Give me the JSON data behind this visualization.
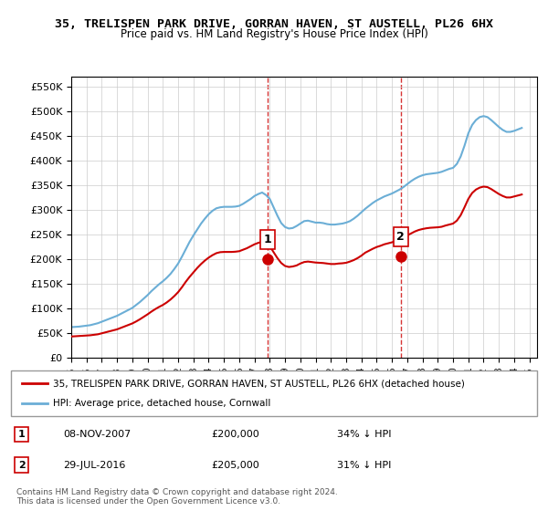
{
  "title": "35, TRELISPEN PARK DRIVE, GORRAN HAVEN, ST AUSTELL, PL26 6HX",
  "subtitle": "Price paid vs. HM Land Registry's House Price Index (HPI)",
  "ylabel_ticks": [
    "£0",
    "£50K",
    "£100K",
    "£150K",
    "£200K",
    "£250K",
    "£300K",
    "£350K",
    "£400K",
    "£450K",
    "£500K",
    "£550K"
  ],
  "ytick_values": [
    0,
    50000,
    100000,
    150000,
    200000,
    250000,
    300000,
    350000,
    400000,
    450000,
    500000,
    550000
  ],
  "ylim": [
    0,
    570000
  ],
  "xlim_start": 1995.0,
  "xlim_end": 2025.5,
  "xtick_years": [
    1995,
    1996,
    1997,
    1998,
    1999,
    2000,
    2001,
    2002,
    2003,
    2004,
    2005,
    2006,
    2007,
    2008,
    2009,
    2010,
    2011,
    2012,
    2013,
    2014,
    2015,
    2016,
    2017,
    2018,
    2019,
    2020,
    2021,
    2022,
    2023,
    2024,
    2025
  ],
  "sale1_x": 2007.87,
  "sale1_y": 200000,
  "sale1_label": "1",
  "sale2_x": 2016.58,
  "sale2_y": 205000,
  "sale2_label": "2",
  "sale1_date": "08-NOV-2007",
  "sale1_price": "£200,000",
  "sale1_info": "34% ↓ HPI",
  "sale2_date": "29-JUL-2016",
  "sale2_price": "£205,000",
  "sale2_info": "31% ↓ HPI",
  "hpi_color": "#6baed6",
  "price_color": "#cc0000",
  "dashed_color": "#cc0000",
  "bg_color": "#ffffff",
  "grid_color": "#cccccc",
  "legend_label_price": "35, TRELISPEN PARK DRIVE, GORRAN HAVEN, ST AUSTELL, PL26 6HX (detached house)",
  "legend_label_hpi": "HPI: Average price, detached house, Cornwall",
  "footer": "Contains HM Land Registry data © Crown copyright and database right 2024.\nThis data is licensed under the Open Government Licence v3.0.",
  "hpi_data_x": [
    1995.0,
    1995.25,
    1995.5,
    1995.75,
    1996.0,
    1996.25,
    1996.5,
    1996.75,
    1997.0,
    1997.25,
    1997.5,
    1997.75,
    1998.0,
    1998.25,
    1998.5,
    1998.75,
    1999.0,
    1999.25,
    1999.5,
    1999.75,
    2000.0,
    2000.25,
    2000.5,
    2000.75,
    2001.0,
    2001.25,
    2001.5,
    2001.75,
    2002.0,
    2002.25,
    2002.5,
    2002.75,
    2003.0,
    2003.25,
    2003.5,
    2003.75,
    2004.0,
    2004.25,
    2004.5,
    2004.75,
    2005.0,
    2005.25,
    2005.5,
    2005.75,
    2006.0,
    2006.25,
    2006.5,
    2006.75,
    2007.0,
    2007.25,
    2007.5,
    2007.75,
    2008.0,
    2008.25,
    2008.5,
    2008.75,
    2009.0,
    2009.25,
    2009.5,
    2009.75,
    2010.0,
    2010.25,
    2010.5,
    2010.75,
    2011.0,
    2011.25,
    2011.5,
    2011.75,
    2012.0,
    2012.25,
    2012.5,
    2012.75,
    2013.0,
    2013.25,
    2013.5,
    2013.75,
    2014.0,
    2014.25,
    2014.5,
    2014.75,
    2015.0,
    2015.25,
    2015.5,
    2015.75,
    2016.0,
    2016.25,
    2016.5,
    2016.75,
    2017.0,
    2017.25,
    2017.5,
    2017.75,
    2018.0,
    2018.25,
    2018.5,
    2018.75,
    2019.0,
    2019.25,
    2019.5,
    2019.75,
    2020.0,
    2020.25,
    2020.5,
    2020.75,
    2021.0,
    2021.25,
    2021.5,
    2021.75,
    2022.0,
    2022.25,
    2022.5,
    2022.75,
    2023.0,
    2023.25,
    2023.5,
    2023.75,
    2024.0,
    2024.25,
    2024.5
  ],
  "hpi_data_y": [
    62000,
    62500,
    63000,
    64000,
    65000,
    66000,
    68000,
    70000,
    73000,
    76000,
    79000,
    82000,
    85000,
    89000,
    93000,
    97000,
    101000,
    107000,
    113000,
    120000,
    127000,
    135000,
    142000,
    149000,
    155000,
    162000,
    170000,
    180000,
    191000,
    205000,
    220000,
    235000,
    248000,
    260000,
    272000,
    282000,
    291000,
    298000,
    303000,
    305000,
    306000,
    306000,
    306000,
    306500,
    308000,
    312000,
    317000,
    322000,
    328000,
    332000,
    335000,
    330000,
    322000,
    305000,
    288000,
    273000,
    265000,
    262000,
    263000,
    267000,
    272000,
    277000,
    278000,
    276000,
    274000,
    274000,
    273000,
    271000,
    270000,
    270000,
    271000,
    272000,
    274000,
    277000,
    282000,
    288000,
    295000,
    302000,
    308000,
    314000,
    319000,
    323000,
    327000,
    330000,
    333000,
    337000,
    341000,
    346000,
    352000,
    358000,
    363000,
    367000,
    370000,
    372000,
    373000,
    374000,
    375000,
    377000,
    380000,
    383000,
    385000,
    393000,
    408000,
    430000,
    455000,
    472000,
    482000,
    488000,
    490000,
    488000,
    482000,
    475000,
    468000,
    462000,
    458000,
    458000,
    460000,
    463000,
    466000
  ],
  "price_data_x": [
    1995.0,
    1995.25,
    1995.5,
    1995.75,
    1996.0,
    1996.25,
    1996.5,
    1996.75,
    1997.0,
    1997.25,
    1997.5,
    1997.75,
    1998.0,
    1998.25,
    1998.5,
    1998.75,
    1999.0,
    1999.25,
    1999.5,
    1999.75,
    2000.0,
    2000.25,
    2000.5,
    2000.75,
    2001.0,
    2001.25,
    2001.5,
    2001.75,
    2002.0,
    2002.25,
    2002.5,
    2002.75,
    2003.0,
    2003.25,
    2003.5,
    2003.75,
    2004.0,
    2004.25,
    2004.5,
    2004.75,
    2005.0,
    2005.25,
    2005.5,
    2005.75,
    2006.0,
    2006.25,
    2006.5,
    2006.75,
    2007.0,
    2007.25,
    2007.5,
    2007.75,
    2008.0,
    2008.25,
    2008.5,
    2008.75,
    2009.0,
    2009.25,
    2009.5,
    2009.75,
    2010.0,
    2010.25,
    2010.5,
    2010.75,
    2011.0,
    2011.25,
    2011.5,
    2011.75,
    2012.0,
    2012.25,
    2012.5,
    2012.75,
    2013.0,
    2013.25,
    2013.5,
    2013.75,
    2014.0,
    2014.25,
    2014.5,
    2014.75,
    2015.0,
    2015.25,
    2015.5,
    2015.75,
    2016.0,
    2016.25,
    2016.5,
    2016.75,
    2017.0,
    2017.25,
    2017.5,
    2017.75,
    2018.0,
    2018.25,
    2018.5,
    2018.75,
    2019.0,
    2019.25,
    2019.5,
    2019.75,
    2020.0,
    2020.25,
    2020.5,
    2020.75,
    2021.0,
    2021.25,
    2021.5,
    2021.75,
    2022.0,
    2022.25,
    2022.5,
    2022.75,
    2023.0,
    2023.25,
    2023.5,
    2023.75,
    2024.0,
    2024.25,
    2024.5
  ],
  "price_data_y": [
    43000,
    43500,
    44000,
    44500,
    45000,
    45500,
    46500,
    47500,
    49500,
    51500,
    53500,
    55500,
    57500,
    60500,
    63500,
    66500,
    69500,
    73500,
    78000,
    83000,
    88000,
    93500,
    98500,
    103000,
    107000,
    112000,
    118000,
    125000,
    133000,
    143000,
    154000,
    164000,
    173000,
    182000,
    190000,
    197000,
    203000,
    208000,
    212000,
    214000,
    214500,
    214500,
    214500,
    215000,
    216000,
    219000,
    222000,
    226000,
    230000,
    233000,
    235000,
    232000,
    226000,
    214000,
    202000,
    192000,
    186000,
    184000,
    185000,
    187000,
    191000,
    194000,
    195000,
    194000,
    193000,
    192500,
    192000,
    191000,
    190000,
    190000,
    191000,
    191500,
    192500,
    195000,
    198000,
    202000,
    207000,
    213000,
    217000,
    221000,
    224500,
    227000,
    230000,
    232000,
    234000,
    237000,
    240000,
    244000,
    248000,
    252000,
    256000,
    259000,
    261000,
    262500,
    263500,
    264000,
    264500,
    265500,
    268000,
    270000,
    272000,
    278000,
    289000,
    305000,
    322000,
    334000,
    341000,
    345000,
    347000,
    346000,
    342000,
    337000,
    332000,
    328000,
    325000,
    325000,
    327000,
    329000,
    331000
  ]
}
